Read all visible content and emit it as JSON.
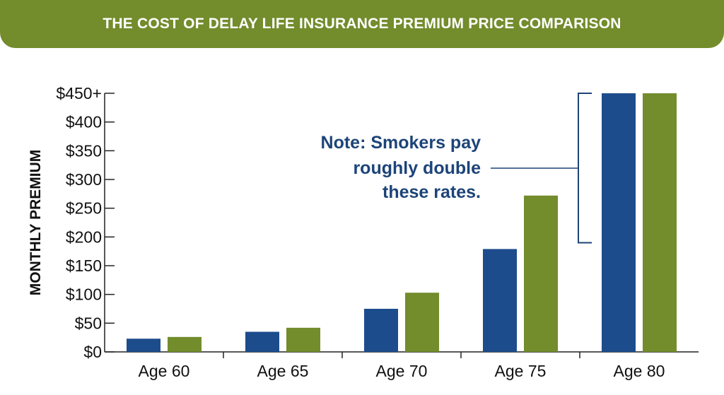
{
  "banner": {
    "title": "THE COST OF DELAY LIFE INSURANCE PREMIUM PRICE COMPARISON"
  },
  "chart_data": {
    "type": "bar",
    "title": "THE COST OF DELAY LIFE INSURANCE PREMIUM PRICE COMPARISON",
    "xlabel": "",
    "ylabel": "MONTHLY PREMIUM",
    "categories": [
      "Age 60",
      "Age 65",
      "Age 70",
      "Age 75",
      "Age 80"
    ],
    "series": [
      {
        "color": "#1d4c8c",
        "values": [
          23,
          35,
          75,
          179,
          450
        ]
      },
      {
        "color": "#738c2c",
        "values": [
          26,
          42,
          103,
          272,
          450
        ]
      }
    ],
    "ylim": [
      0,
      450
    ],
    "yticks": [
      0,
      50,
      100,
      150,
      200,
      250,
      300,
      350,
      400,
      450
    ],
    "ytick_labels": [
      "$0",
      "$50",
      "$100",
      "$150",
      "$200",
      "$250",
      "$300",
      "$350",
      "$400",
      "$450+"
    ],
    "annotation": {
      "lines": [
        "Note: Smokers pay",
        "roughly double",
        "these rates."
      ],
      "color": "#1d4478",
      "bracket_range": [
        190,
        450
      ]
    },
    "grid": false,
    "legend": "none"
  }
}
